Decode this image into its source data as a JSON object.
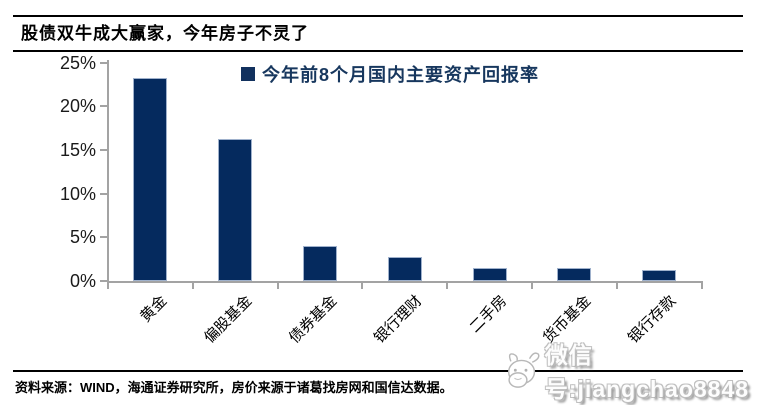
{
  "header": {
    "title": "股债双牛成大赢家，今年房子不灵了"
  },
  "chart_data": {
    "type": "bar",
    "title": "今年前8个月国内主要资产回报率",
    "legend": "今年前8个月国内主要资产回报率",
    "legend_position": "top",
    "categories": [
      "黄金",
      "偏股基金",
      "债券基金",
      "银行理财",
      "二手房",
      "货币基金",
      "银行存款"
    ],
    "values": [
      23.2,
      16.3,
      4.0,
      2.7,
      1.5,
      1.5,
      1.3
    ],
    "unit": "%",
    "ylim": [
      0,
      25
    ],
    "ytick_labels": [
      "25%",
      "20%",
      "15%",
      "10%",
      "5%",
      "0%"
    ],
    "grid": false,
    "bar_color": "#052a5e",
    "bar_border_color": "#9fb1cc",
    "legend_color": "#17375e",
    "axis_color": "#a3a3a3"
  },
  "footer": {
    "source": "资料来源：WIND，海通证券研究所，房价来源于诸葛找房网和国信达数据。"
  },
  "watermark": {
    "icon": "cartoon-head-icon",
    "text": "微信号:jiangchao8848"
  }
}
